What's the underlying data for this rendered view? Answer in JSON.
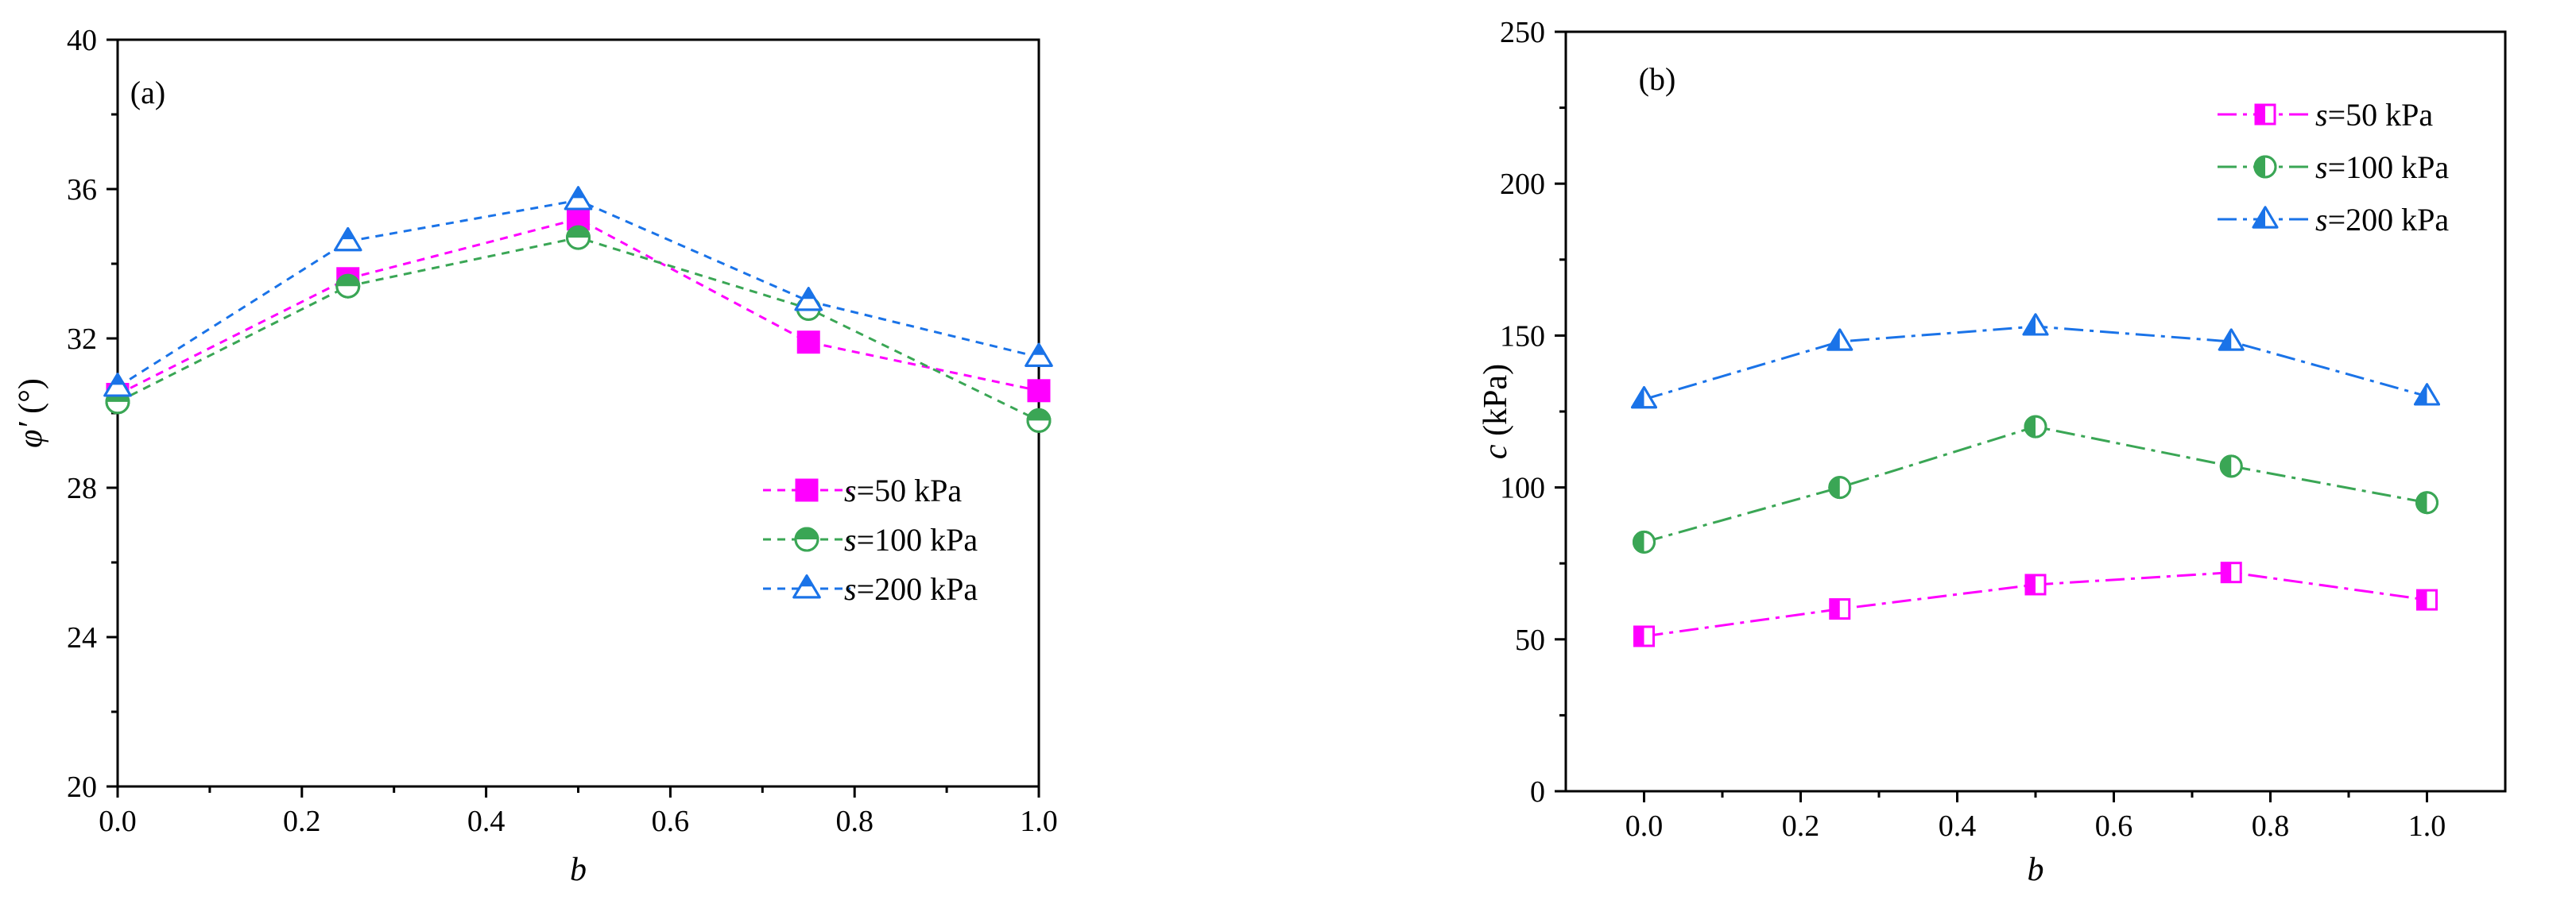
{
  "chart_data": [
    {
      "type": "line",
      "panel_label": "(a)",
      "xlabel": "b",
      "ylabel_symbol": "φ′",
      "ylabel_unit": " (°)",
      "xlim": [
        0.0,
        1.0
      ],
      "ylim": [
        20,
        40
      ],
      "xticks": [
        "0.0",
        "0.2",
        "0.4",
        "0.6",
        "0.8",
        "1.0"
      ],
      "yticks": [
        "20",
        "24",
        "28",
        "32",
        "36",
        "40"
      ],
      "x": [
        0.0,
        0.25,
        0.5,
        0.75,
        1.0
      ],
      "legend_position": "middle-right",
      "series": [
        {
          "name": "s=50 kPa",
          "legend_var": "s",
          "legend_rest": "=50 kPa",
          "color": "#ff00ff",
          "marker": "square",
          "values": [
            30.5,
            33.6,
            35.2,
            31.9,
            30.6
          ]
        },
        {
          "name": "s=100 kPa",
          "legend_var": "s",
          "legend_rest": "=100 kPa",
          "color": "#3aa655",
          "marker": "circle",
          "values": [
            30.3,
            33.4,
            34.7,
            32.8,
            29.8
          ]
        },
        {
          "name": "s=200 kPa",
          "legend_var": "s",
          "legend_rest": "=200 kPa",
          "color": "#1a73e8",
          "marker": "triangle",
          "values": [
            30.7,
            34.6,
            35.7,
            33.0,
            31.5
          ]
        }
      ]
    },
    {
      "type": "line",
      "panel_label": "(b)",
      "xlabel": "b",
      "ylabel_symbol": "c",
      "ylabel_unit": " (kPa)",
      "xlim": [
        -0.1,
        1.1
      ],
      "ylim": [
        0,
        250
      ],
      "xticks": [
        "0.0",
        "0.2",
        "0.4",
        "0.6",
        "0.8",
        "1.0"
      ],
      "yticks": [
        "0",
        "50",
        "100",
        "150",
        "200",
        "250"
      ],
      "x": [
        0.0,
        0.25,
        0.5,
        0.75,
        1.0
      ],
      "legend_position": "top-right",
      "series": [
        {
          "name": "s=50 kPa",
          "legend_var": "s",
          "legend_rest": "=50 kPa",
          "color": "#ff00ff",
          "marker": "square-half",
          "values": [
            51,
            60,
            68,
            72,
            63
          ]
        },
        {
          "name": "s=100 kPa",
          "legend_var": "s",
          "legend_rest": "=100 kPa",
          "color": "#3aa655",
          "marker": "circle-half",
          "values": [
            82,
            100,
            120,
            107,
            95
          ]
        },
        {
          "name": "s=200 kPa",
          "legend_var": "s",
          "legend_rest": "=200 kPa",
          "color": "#1a73e8",
          "marker": "triangle-half",
          "values": [
            129,
            148,
            153,
            148,
            130
          ]
        }
      ]
    }
  ]
}
